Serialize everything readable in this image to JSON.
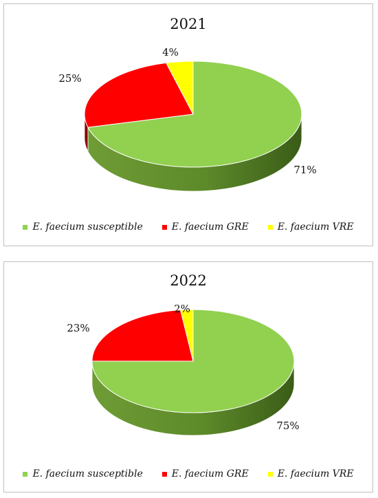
{
  "chart_data": [
    {
      "type": "pie",
      "title": "2021",
      "categories": [
        "E. faecium susceptible",
        "E. faecium GRE",
        "E. faecium VRE"
      ],
      "values": [
        71,
        25,
        4
      ],
      "value_labels": [
        "71%",
        "25%",
        "4%"
      ],
      "colors": [
        "#92d050",
        "#ff0000",
        "#ffff00"
      ],
      "legend_position": "bottom"
    },
    {
      "type": "pie",
      "title": "2022",
      "categories": [
        "E. faecium susceptible",
        "E. faecium GRE",
        "E. faecium VRE"
      ],
      "values": [
        75,
        23,
        2
      ],
      "value_labels": [
        "75%",
        "23%",
        "2%"
      ],
      "colors": [
        "#92d050",
        "#ff0000",
        "#ffff00"
      ],
      "legend_position": "bottom"
    }
  ]
}
